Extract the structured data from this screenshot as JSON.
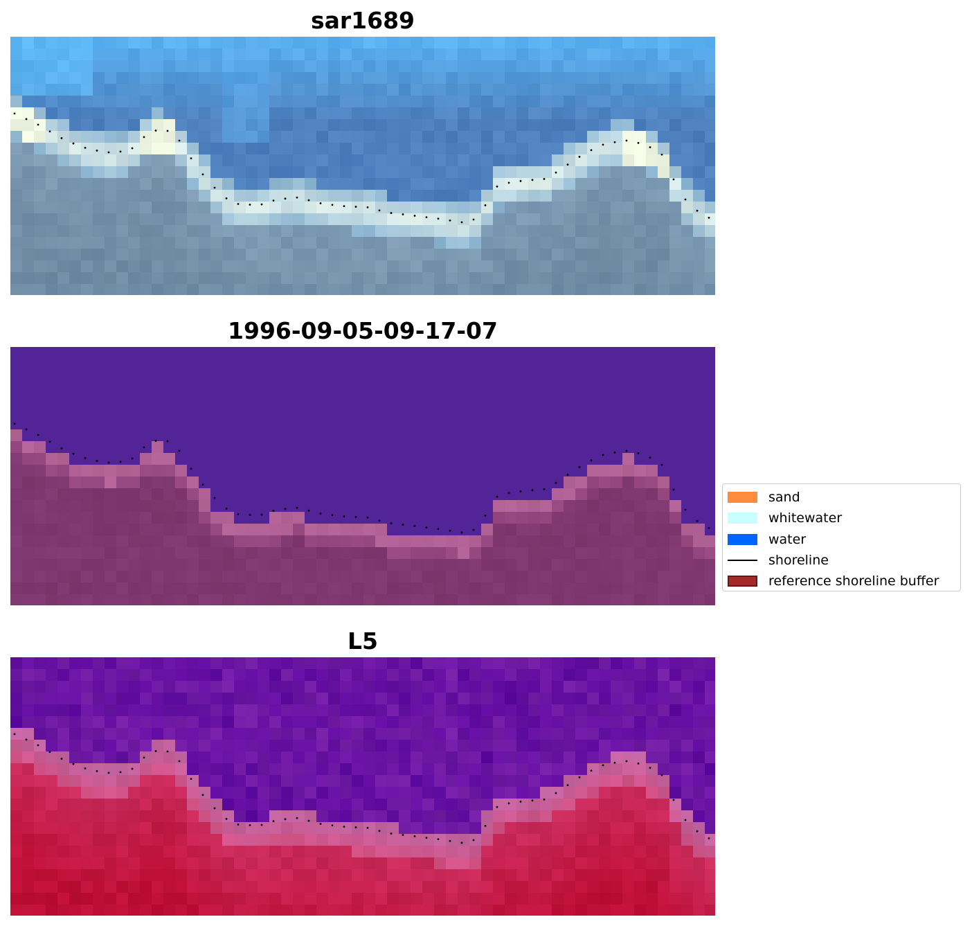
{
  "panels": [
    {
      "title": "sar1689",
      "style": "rgb"
    },
    {
      "title": "1996-09-05-09-17-07",
      "style": "classified"
    },
    {
      "title": "L5",
      "style": "index"
    }
  ],
  "legend": [
    {
      "label": "sand",
      "color": "#ff8c3c",
      "kind": "patch"
    },
    {
      "label": "whitewater",
      "color": "#c8ffff",
      "kind": "patch"
    },
    {
      "label": "water",
      "color": "#0064ff",
      "kind": "patch"
    },
    {
      "label": "shoreline",
      "color": "#000000",
      "kind": "line"
    },
    {
      "label": "reference shoreline buffer",
      "color": "#a52a2a",
      "kind": "patch"
    }
  ],
  "colors": {
    "shoreline_dots": "#000000",
    "classified_water": "#532497",
    "classified_land": "#7f386f"
  }
}
